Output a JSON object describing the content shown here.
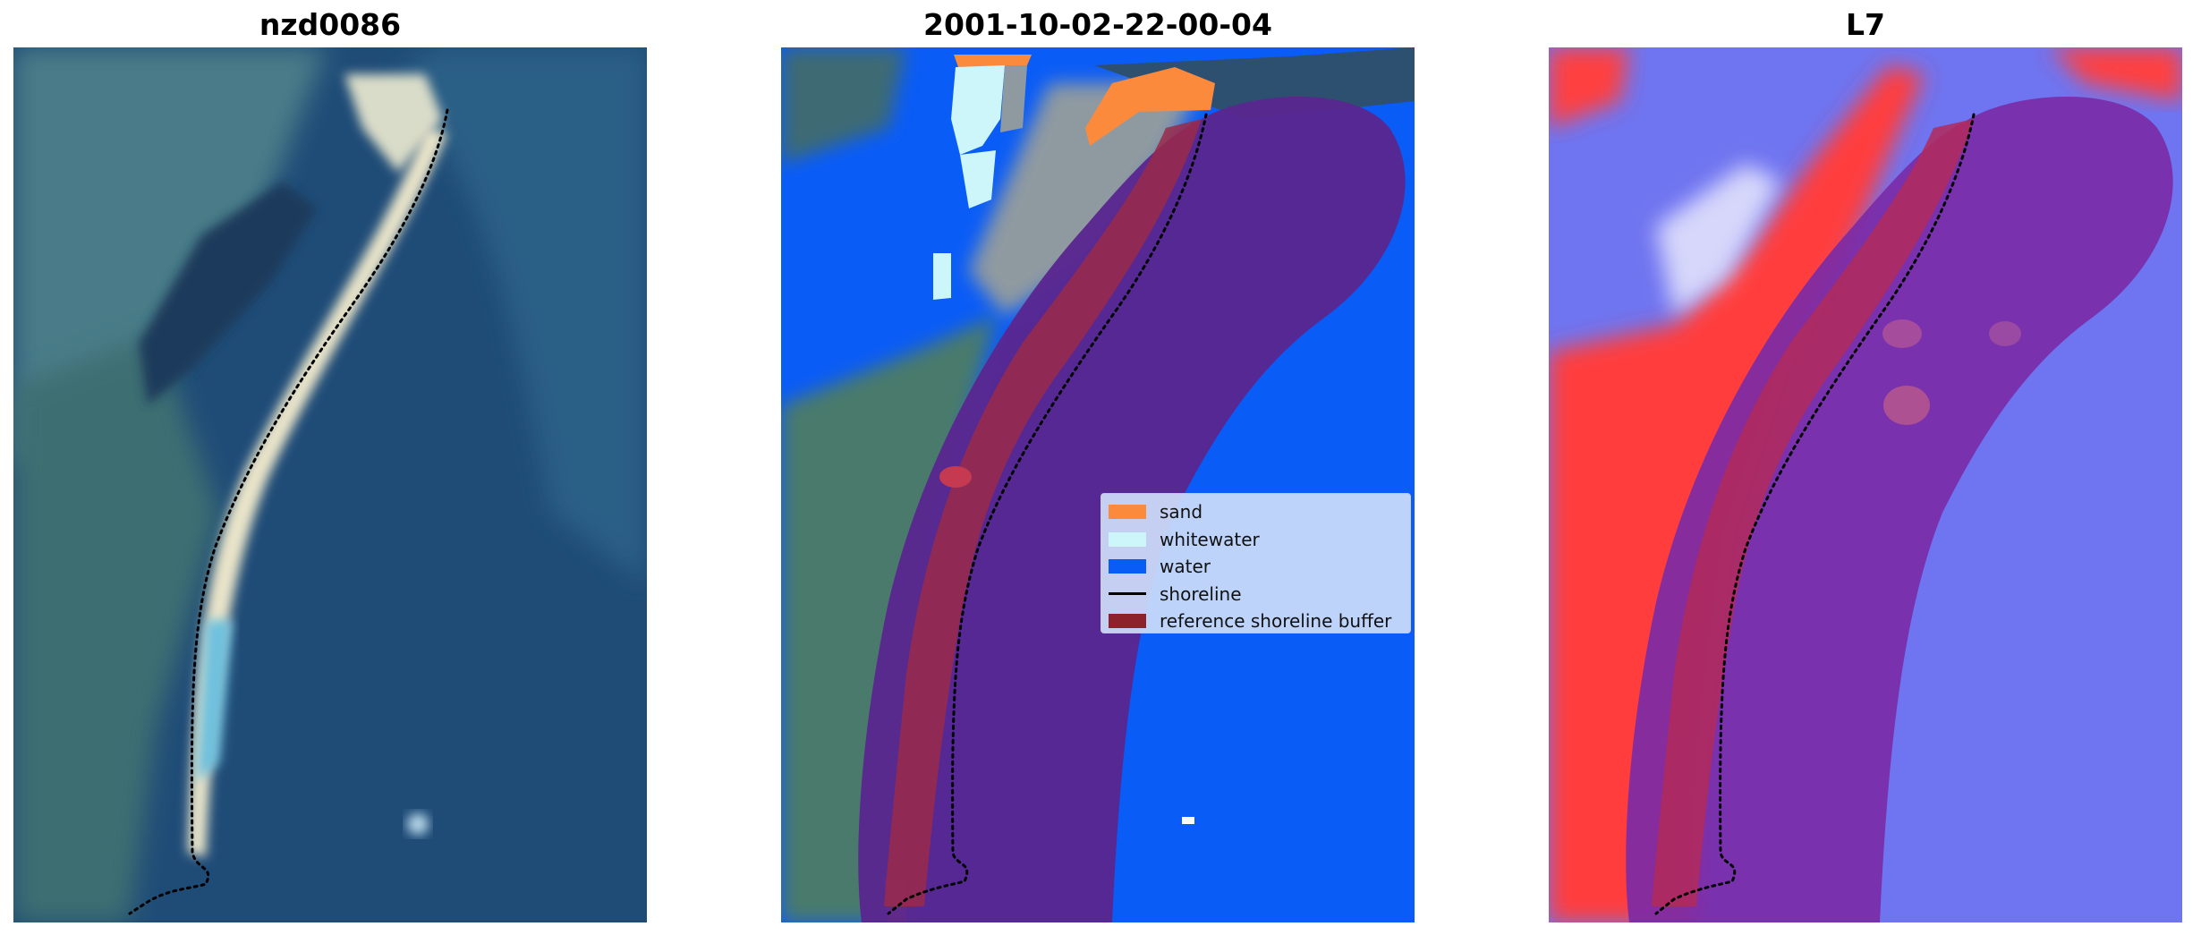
{
  "panels": [
    {
      "title": "nzd0086",
      "style": "rgb-imagery"
    },
    {
      "title": "2001-10-02-22-00-04",
      "style": "classified"
    },
    {
      "title": "L7",
      "style": "index-map"
    }
  ],
  "colors": {
    "sand": "#fb8a3c",
    "whitewater": "#cdf6fb",
    "water": "#0a5cf7",
    "shoreline": "#000000",
    "reference_buffer": "#8e222c",
    "buffer_overlay_purple": "#5a2690"
  },
  "legend": {
    "items": [
      {
        "label": "sand",
        "color": "#fb8a3c",
        "kind": "patch"
      },
      {
        "label": "whitewater",
        "color": "#cdf6fb",
        "kind": "patch"
      },
      {
        "label": "water",
        "color": "#0a5cf7",
        "kind": "patch"
      },
      {
        "label": "shoreline",
        "color": "#000000",
        "kind": "line"
      },
      {
        "label": "reference shoreline buffer",
        "color": "#8e222c",
        "kind": "patch"
      }
    ]
  }
}
